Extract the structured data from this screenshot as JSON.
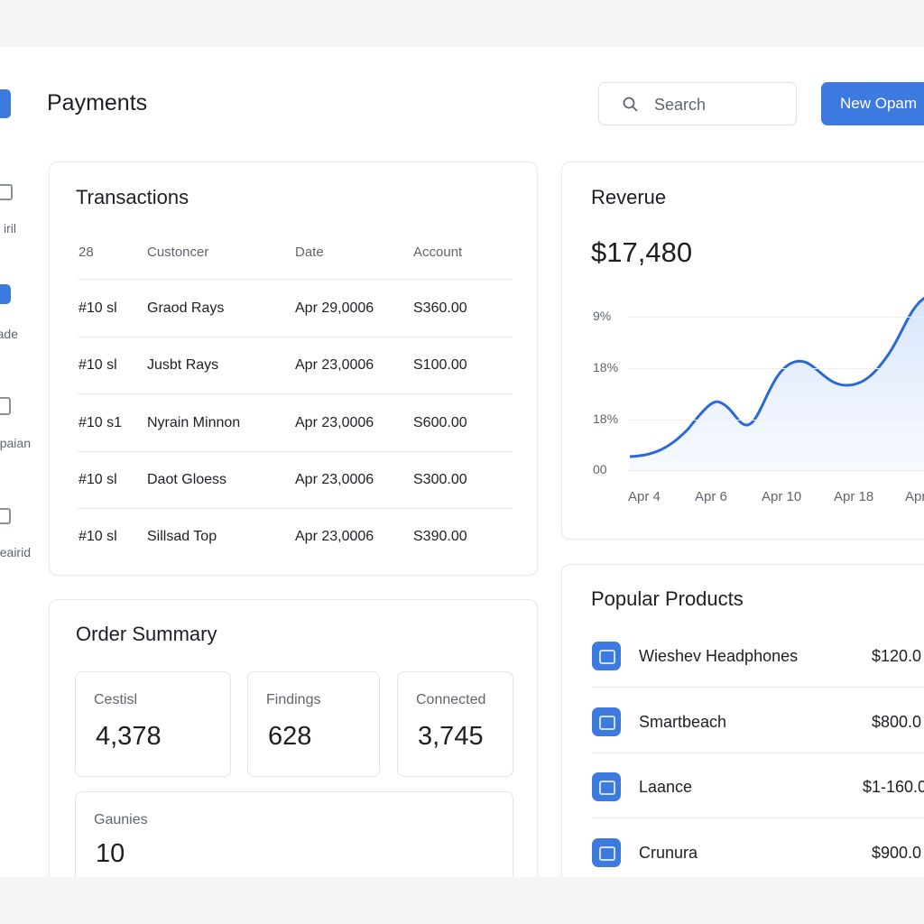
{
  "header": {
    "title": "Payments",
    "search_placeholder": "Search",
    "button": "New Opam"
  },
  "sidebar": {
    "items": [
      "iril",
      "ade",
      "paian",
      "eairid"
    ]
  },
  "transactions": {
    "title": "Transactions",
    "columns": [
      "28",
      "Custoncer",
      "Date",
      "Account"
    ],
    "rows": [
      [
        "#10 sl",
        "Graod Rays",
        "Apr 29,0006",
        "S360.00"
      ],
      [
        "#10 sl",
        "Jusbt Rays",
        "Apr 23,0006",
        "S100.00"
      ],
      [
        "#10 s1",
        "Nyrain Minnon",
        "Apr 23,0006",
        "S600.00"
      ],
      [
        "#10 sl",
        "Daot Gloess",
        "Apr 23,0006",
        "S300.00"
      ],
      [
        "#10 sl",
        "Sillsad Top",
        "Apr 23,0006",
        "S390.00"
      ]
    ]
  },
  "order_summary": {
    "title": "Order Summary",
    "stats": [
      {
        "label": "Cestisl",
        "value": "4,378"
      },
      {
        "label": "Findings",
        "value": "628"
      },
      {
        "label": "Connected",
        "value": "3,745"
      },
      {
        "label": "Gaunies",
        "value": "10"
      }
    ]
  },
  "revenue": {
    "title": "Reverue",
    "total": "$17,480",
    "y_labels": [
      "9%",
      "18%",
      "18%",
      "00"
    ],
    "x_labels": [
      "Apr 4",
      "Apr 6",
      "Apr 10",
      "Apr 18",
      "Apr"
    ]
  },
  "products": {
    "title": "Popular Products",
    "items": [
      {
        "name": "Wieshev Headphones",
        "price": "$120.0"
      },
      {
        "name": "Smartbeach",
        "price": "$800.0"
      },
      {
        "name": "Laance",
        "price": "$1-160.0"
      },
      {
        "name": "Crunura",
        "price": "$900.0"
      }
    ]
  }
}
